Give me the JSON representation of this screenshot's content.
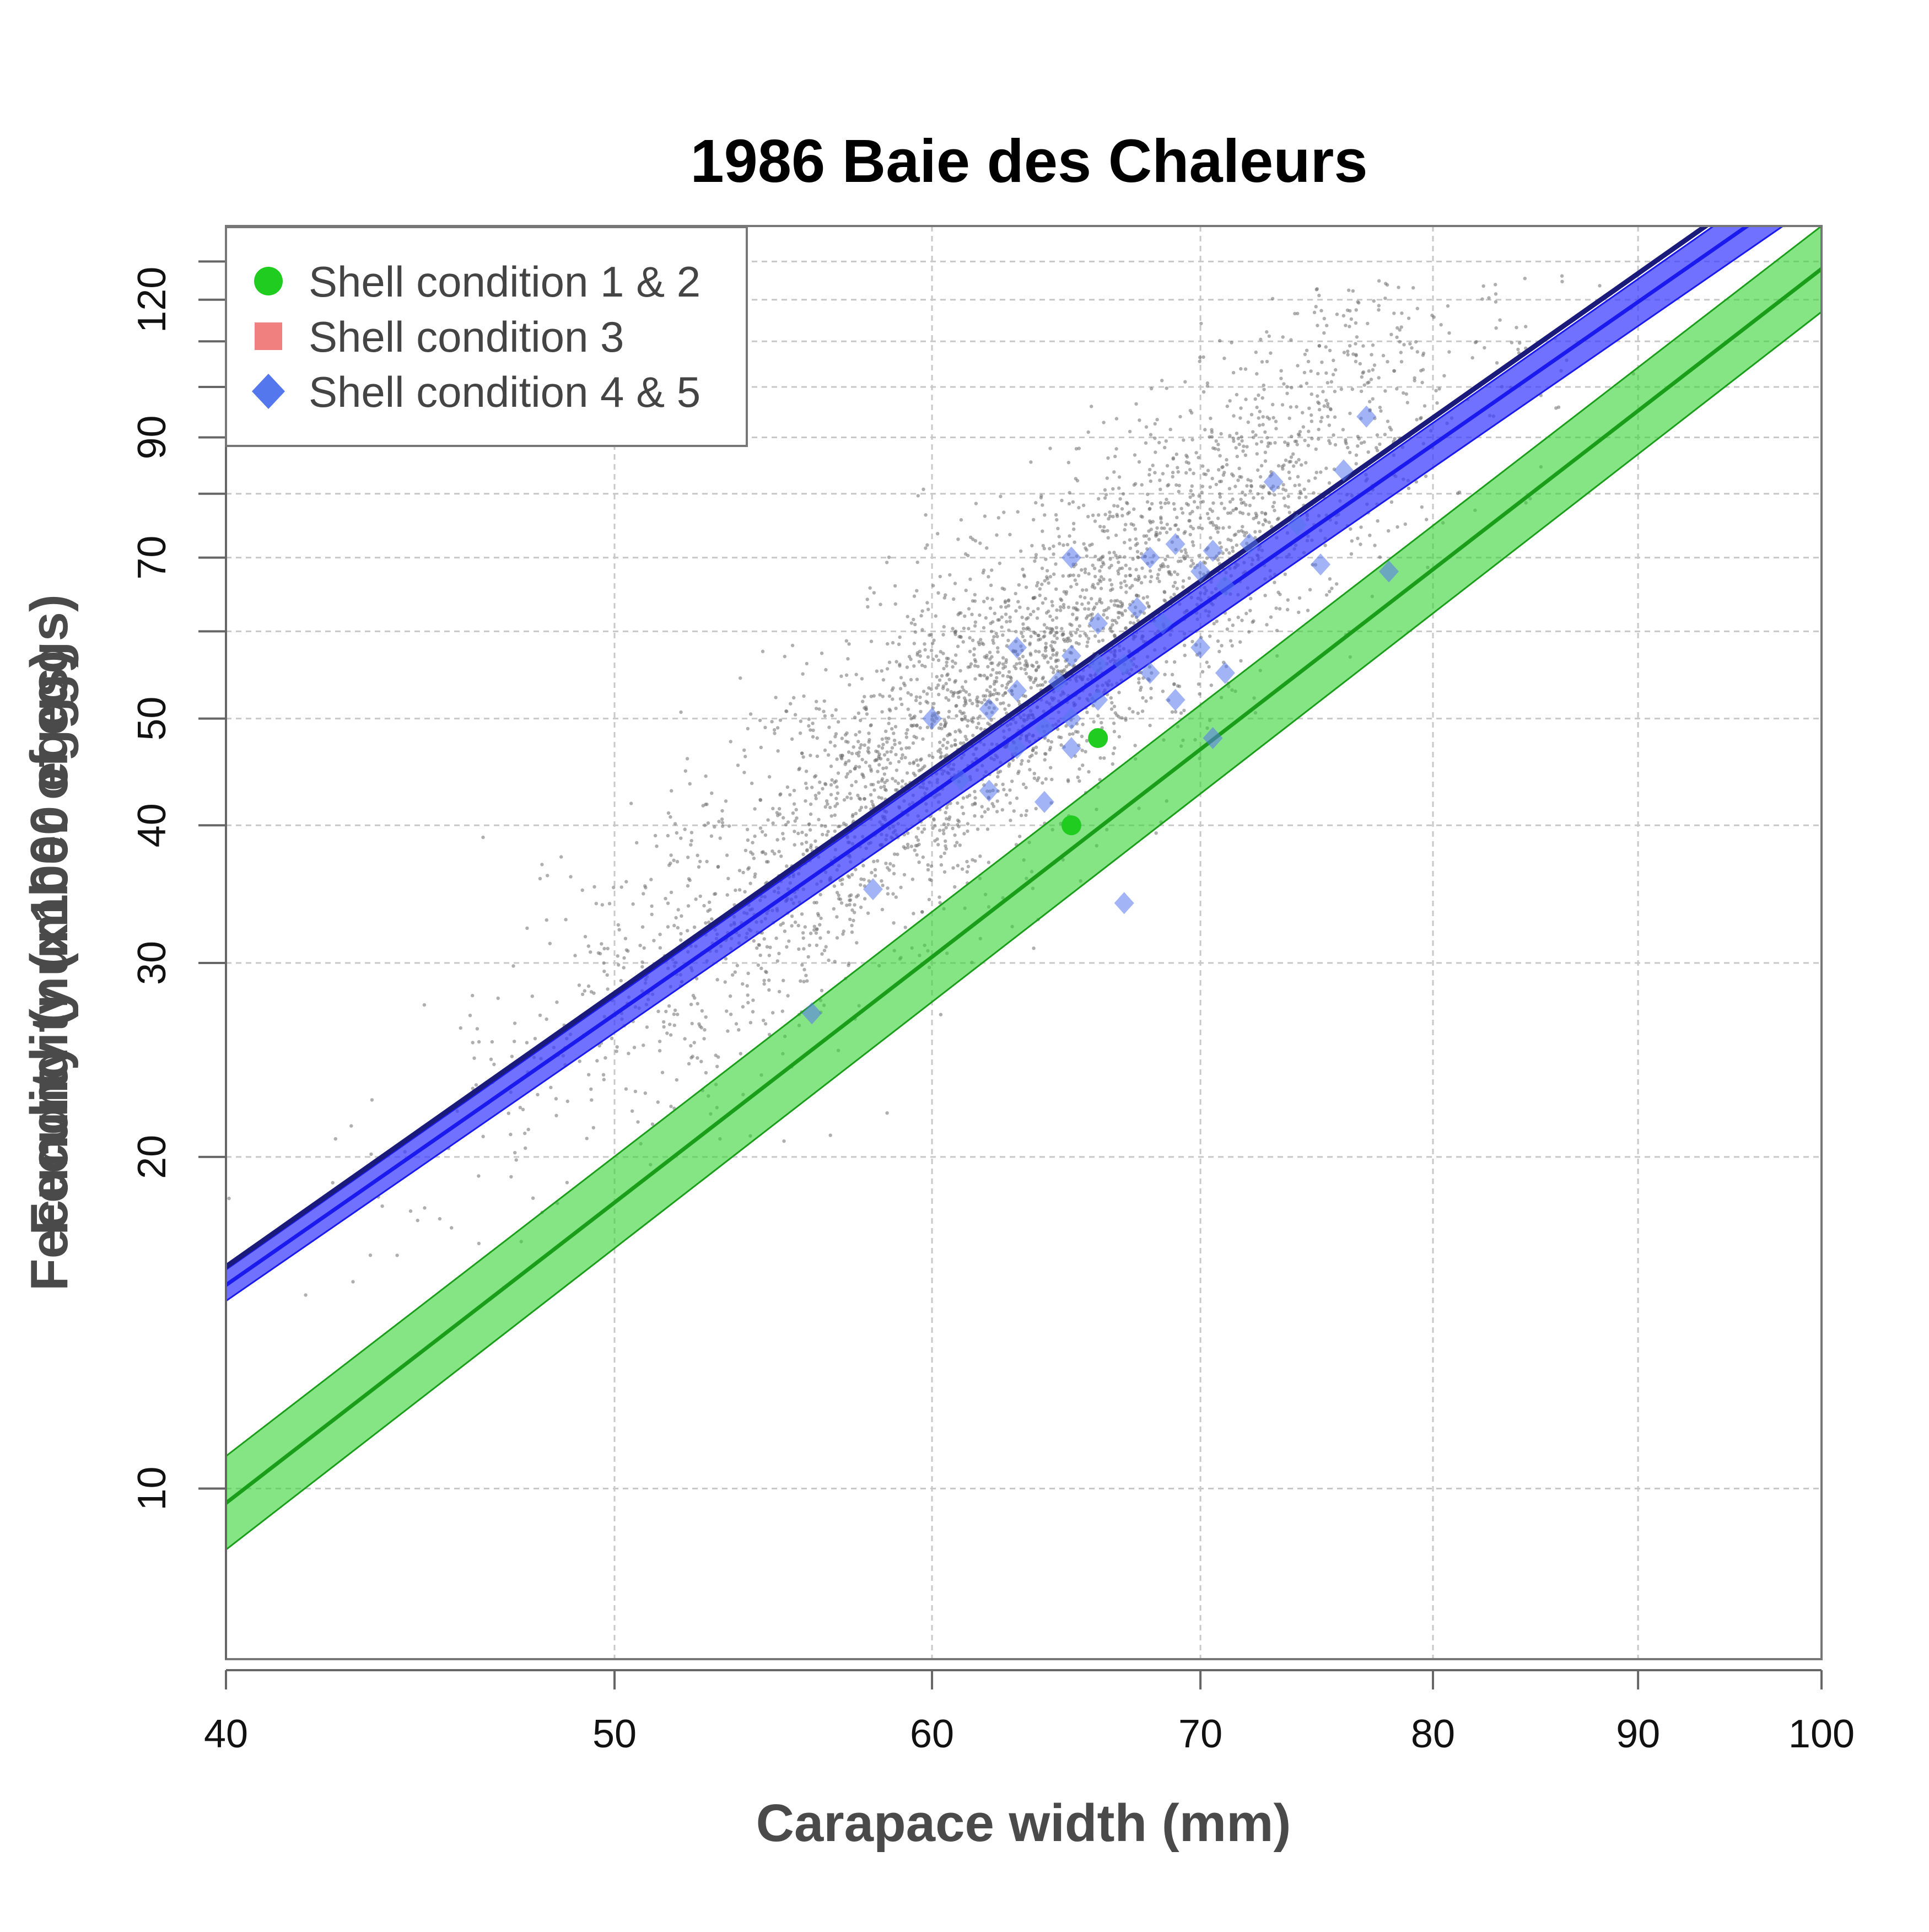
{
  "chart_data": {
    "type": "scatter",
    "title": "1986 Baie des Chaleurs",
    "xlabel": "Carapace width (mm)",
    "ylabel_overlap": [
      "Fecundity (x1000 eggs)",
      "Fecundity (number of eggs)"
    ],
    "x_scale": "log",
    "y_scale": "log",
    "xlim": [
      40,
      100
    ],
    "ylim": [
      7,
      140
    ],
    "x_ticks": [
      40,
      50,
      60,
      70,
      80,
      90,
      100
    ],
    "y_ticks": [
      10,
      20,
      30,
      40,
      50,
      70,
      90,
      120
    ],
    "y_minor_ticks": [
      60,
      80,
      100,
      110,
      130
    ],
    "grid": true,
    "legend_position": "top-left",
    "colors": {
      "green": "#1fcc1f",
      "green_line": "#1a9e1a",
      "green_band": "#3ad53a",
      "blue": "#1a1aee",
      "blue_band": "#3a3aff",
      "blue_point": "#5577ee",
      "navy_line": "#1a1a7a",
      "red_square": "#f08080",
      "background_points": "#6e6e6e"
    },
    "series": [
      {
        "name": "Shell condition 1 & 2",
        "marker": "circle",
        "color": "#1fcc1f",
        "points": [
          [
            66,
            48
          ],
          [
            65,
            40
          ]
        ]
      },
      {
        "name": "Shell condition 3",
        "marker": "square",
        "color": "#f08080",
        "points": []
      },
      {
        "name": "Shell condition 4 & 5",
        "marker": "diamond",
        "color": "#5577ee",
        "points": [
          [
            77,
            94
          ],
          [
            73,
            82
          ],
          [
            74,
            75
          ],
          [
            72,
            72
          ],
          [
            69,
            72
          ],
          [
            70.5,
            71
          ],
          [
            65,
            70
          ],
          [
            68,
            70
          ],
          [
            75,
            69
          ],
          [
            70,
            68
          ],
          [
            71,
            66
          ],
          [
            67.5,
            63
          ],
          [
            68.5,
            61
          ],
          [
            66,
            61
          ],
          [
            70,
            58
          ],
          [
            63,
            58
          ],
          [
            65,
            57
          ],
          [
            66,
            56
          ],
          [
            67,
            56
          ],
          [
            68,
            55
          ],
          [
            71,
            55
          ],
          [
            64.5,
            54
          ],
          [
            63,
            53
          ],
          [
            66,
            52
          ],
          [
            69,
            52
          ],
          [
            62,
            51
          ],
          [
            60,
            50
          ],
          [
            65,
            50
          ],
          [
            64,
            49
          ],
          [
            70.5,
            48
          ],
          [
            63,
            47
          ],
          [
            65,
            47
          ],
          [
            61,
            44
          ],
          [
            62,
            43
          ],
          [
            64,
            42
          ],
          [
            58,
            35
          ],
          [
            67,
            34
          ],
          [
            56,
            27
          ],
          [
            78,
            68
          ],
          [
            76,
            84
          ]
        ]
      }
    ],
    "fit_lines": [
      {
        "name": "Shell condition 1 & 2 fit",
        "color": "#1a9e1a",
        "band_color": "#3ad53a",
        "x": [
          40,
          100
        ],
        "y": [
          9.7,
          128
        ],
        "band_lower": [
          8.8,
          117
        ],
        "band_upper": [
          10.7,
          140
        ]
      },
      {
        "name": "Shell condition 4 & 5 fit",
        "color": "#1a1aee",
        "band_color": "#3a3aff",
        "x": [
          40,
          100
        ],
        "y": [
          15.3,
          156
        ],
        "band_lower": [
          14.8,
          148
        ],
        "band_upper": [
          15.8,
          164
        ]
      },
      {
        "name": "Navy reference line",
        "color": "#1a1a7a",
        "x": [
          40,
          100
        ],
        "y": [
          15.9,
          166
        ]
      }
    ],
    "background_cloud": {
      "description": "dense grey scatter of all observations",
      "center_slope_ratio": 1,
      "count": 3600
    }
  }
}
